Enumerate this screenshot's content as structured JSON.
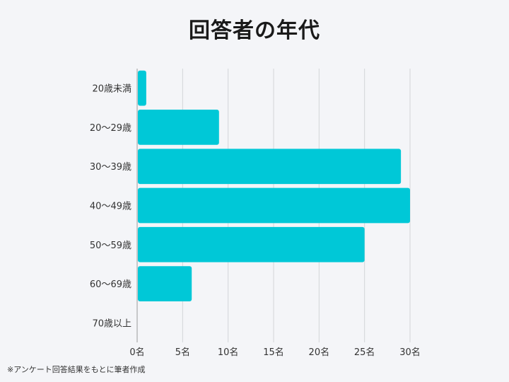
{
  "chart_data": {
    "type": "bar",
    "orientation": "horizontal",
    "title": "回答者の年代",
    "categories": [
      "20歳未満",
      "20～29歳",
      "30～39歳",
      "40～49歳",
      "50～59歳",
      "60～69歳",
      "70歳以上"
    ],
    "values": [
      1,
      9,
      29,
      30,
      25,
      6,
      0
    ],
    "x_ticks": [
      "0名",
      "5名",
      "10名",
      "15名",
      "20名",
      "25名",
      "30名"
    ],
    "xlim": [
      0,
      30
    ],
    "grid": true,
    "bar_color": "#00c8d7"
  },
  "footnote": "※アンケート回答結果をもとに筆者作成"
}
